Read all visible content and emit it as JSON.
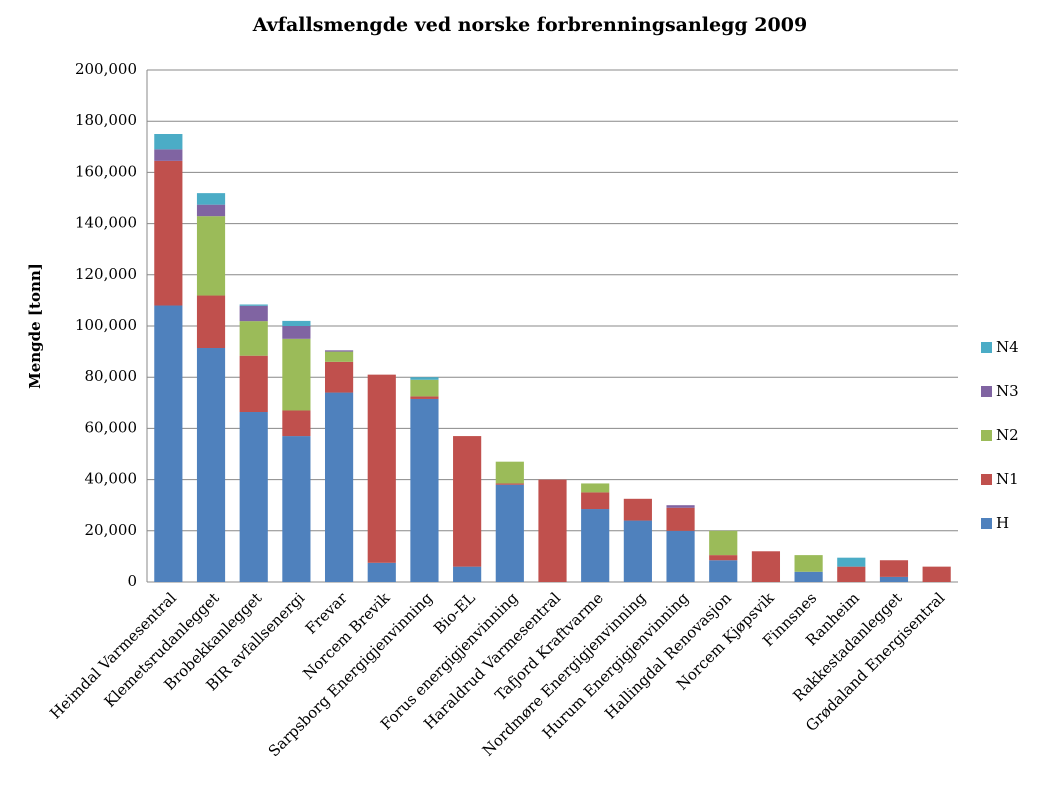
{
  "chart_data": {
    "type": "stacked_bar",
    "title": "Avfallsmengde ved norske forbrenningsanlegg 2009",
    "y_label": "Mengde [tonn]",
    "categories": [
      "Heimdal Varmesentral",
      "Klemetsrudanlegget",
      "Brobekkanlegget",
      "BIR avfallsenergi",
      "Frevar",
      "Norcem Brevik",
      "Sarpsborg Energigjenvinning",
      "Bio-EL",
      "Forus energigjenvinning",
      "Haraldrud Varmesentral",
      "Tafjord Kraftvarme",
      "Nordmøre Energigjenvinning",
      "Hurum Energigjenvinning",
      "Hallingdal Renovasjon",
      "Norcem Kjøpsvik",
      "Finnsnes",
      "Ranheim",
      "Rakkestadanlegget",
      "Grødaland Energisentral"
    ],
    "series": [
      {
        "name": "H",
        "color": "#4f81bd",
        "values": [
          108000,
          91400,
          66400,
          57000,
          74000,
          7500,
          71500,
          6000,
          38000,
          0,
          28500,
          24000,
          20000,
          8500,
          0,
          4000,
          0,
          2000,
          0
        ]
      },
      {
        "name": "N1",
        "color": "#c0504d",
        "values": [
          56500,
          20500,
          22000,
          10000,
          12000,
          73500,
          1000,
          51000,
          500,
          40000,
          6500,
          8500,
          9000,
          2000,
          12000,
          0,
          6000,
          6500,
          6000
        ]
      },
      {
        "name": "N2",
        "color": "#9bbb59",
        "values": [
          0,
          31000,
          13500,
          28000,
          4000,
          0,
          6500,
          0,
          8500,
          0,
          3500,
          0,
          0,
          9500,
          0,
          6500,
          0,
          0,
          0
        ]
      },
      {
        "name": "N3",
        "color": "#8064a2",
        "values": [
          4500,
          4500,
          6000,
          5000,
          500,
          0,
          0,
          0,
          0,
          0,
          0,
          0,
          1000,
          0,
          0,
          0,
          0,
          0,
          0
        ]
      },
      {
        "name": "N4",
        "color": "#4bacc6",
        "values": [
          6000,
          4500,
          500,
          2000,
          0,
          0,
          1000,
          0,
          0,
          0,
          0,
          0,
          0,
          0,
          0,
          0,
          3500,
          0,
          0
        ]
      }
    ],
    "ylim": [
      0,
      200000
    ],
    "yticks": [
      0,
      {
        "value": 20000,
        "label": "20,000"
      },
      {
        "value": 40000,
        "label": "40,000"
      },
      {
        "value": 60000,
        "label": "60,000"
      },
      {
        "value": 80000,
        "label": "80,000"
      },
      {
        "value": 100000,
        "label": "100,000"
      },
      {
        "value": 120000,
        "label": "120,000"
      },
      {
        "value": 140000,
        "label": "140,000"
      },
      {
        "value": 160000,
        "label": "160,000"
      },
      {
        "value": 180000,
        "label": "180,000"
      },
      {
        "value": 200000,
        "label": "200,000"
      }
    ],
    "grid": true,
    "legend": "right"
  }
}
